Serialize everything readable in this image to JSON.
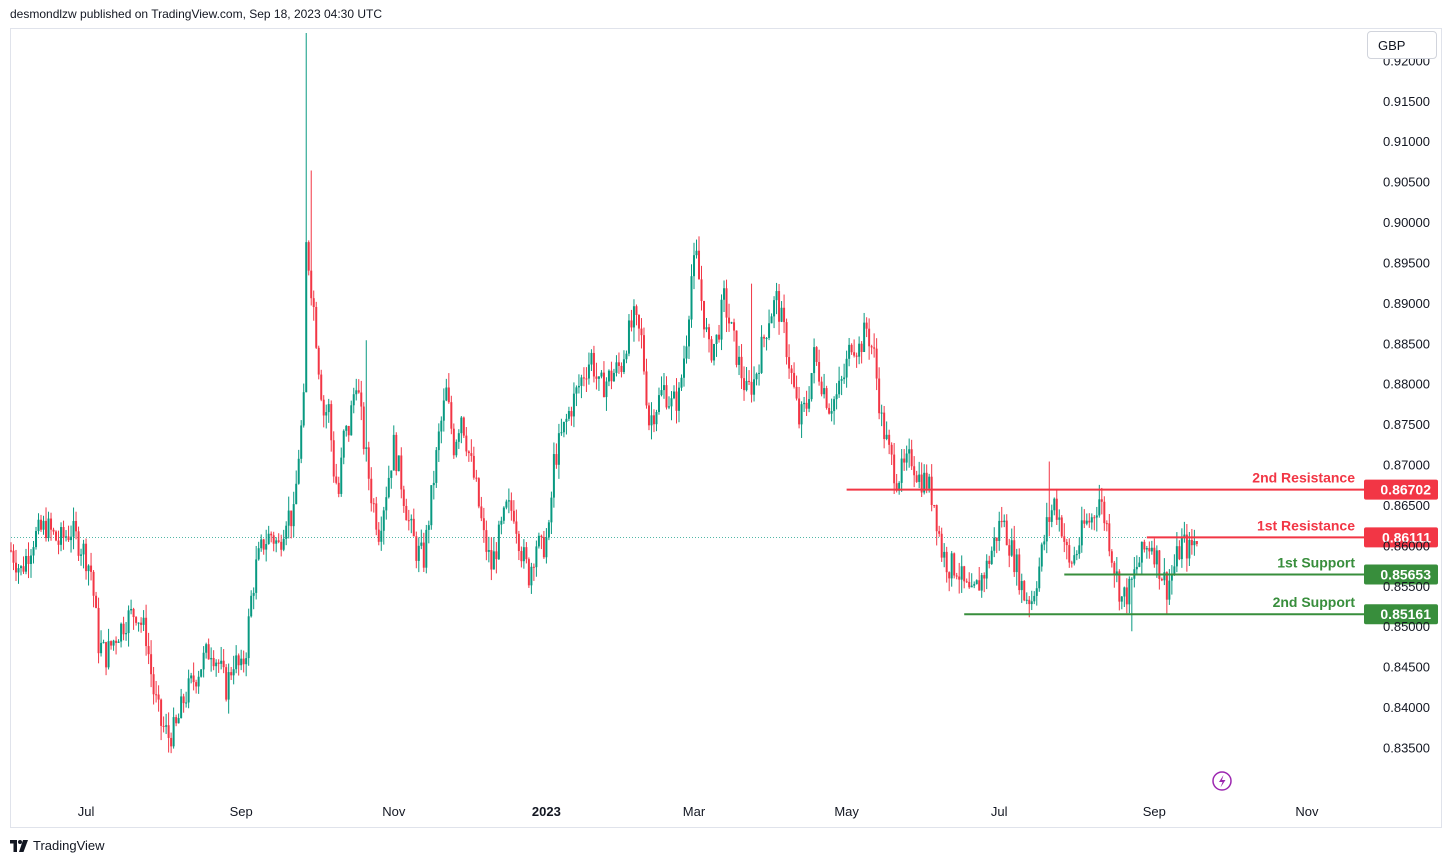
{
  "header": {
    "publisher_line": "desmondlzw published on TradingView.com, Sep 18, 2023 04:30 UTC"
  },
  "currency": "GBP",
  "footer": {
    "brand": "TradingView",
    "logo_icon": "tradingview-logo-icon"
  },
  "colors": {
    "up": "#089981",
    "down": "#f23645",
    "resistance": "#f23645",
    "support": "#388e3c"
  },
  "chart_data": {
    "type": "candlestick",
    "title": "",
    "y_range": [
      0.829,
      0.924
    ],
    "y_ticks": [
      "0.92000",
      "0.91500",
      "0.91000",
      "0.90500",
      "0.90000",
      "0.89500",
      "0.89000",
      "0.88500",
      "0.88000",
      "0.87500",
      "0.87000",
      "0.86500",
      "0.86000",
      "0.85500",
      "0.85000",
      "0.84500",
      "0.84000",
      "0.83500"
    ],
    "x_labels": [
      {
        "label": "Jul",
        "date": "2022-07-01",
        "bold": false
      },
      {
        "label": "Sep",
        "date": "2022-09-01",
        "bold": false
      },
      {
        "label": "Nov",
        "date": "2022-11-01",
        "bold": false
      },
      {
        "label": "2023",
        "date": "2023-01-01",
        "bold": true
      },
      {
        "label": "Mar",
        "date": "2023-03-01",
        "bold": false
      },
      {
        "label": "May",
        "date": "2023-05-01",
        "bold": false
      },
      {
        "label": "Jul",
        "date": "2023-07-01",
        "bold": false
      },
      {
        "label": "Sep",
        "date": "2023-09-01",
        "bold": false
      },
      {
        "label": "Nov",
        "date": "2023-11-01",
        "bold": false
      }
    ],
    "x_range": [
      "2022-06-01",
      "2023-11-23"
    ],
    "current_price": 0.8611,
    "levels": [
      {
        "name": "2nd Resistance",
        "value": 0.86702,
        "price_label": "0.86702",
        "kind": "resistance",
        "start": "2023-05-01"
      },
      {
        "name": "1st Resistance",
        "value": 0.86111,
        "price_label": "0.86111",
        "kind": "resistance",
        "start": "2023-08-29"
      },
      {
        "name": "1st Support",
        "value": 0.85653,
        "price_label": "0.85653",
        "kind": "support",
        "start": "2023-07-27"
      },
      {
        "name": "2nd Support",
        "value": 0.85161,
        "price_label": "0.85161",
        "kind": "support",
        "start": "2023-06-17"
      }
    ],
    "closes": [
      [
        "2022-06-01",
        0.8595
      ],
      [
        "2022-06-05",
        0.857
      ],
      [
        "2022-06-10",
        0.861
      ],
      [
        "2022-06-15",
        0.8625
      ],
      [
        "2022-06-20",
        0.8605
      ],
      [
        "2022-06-25",
        0.862
      ],
      [
        "2022-06-30",
        0.8595
      ],
      [
        "2022-07-03",
        0.857
      ],
      [
        "2022-07-06",
        0.848
      ],
      [
        "2022-07-09",
        0.8465
      ],
      [
        "2022-07-13",
        0.849
      ],
      [
        "2022-07-17",
        0.851
      ],
      [
        "2022-07-21",
        0.852
      ],
      [
        "2022-07-25",
        0.849
      ],
      [
        "2022-07-28",
        0.842
      ],
      [
        "2022-07-31",
        0.838
      ],
      [
        "2022-08-03",
        0.8365
      ],
      [
        "2022-08-06",
        0.8375
      ],
      [
        "2022-08-09",
        0.841
      ],
      [
        "2022-08-13",
        0.8435
      ],
      [
        "2022-08-17",
        0.846
      ],
      [
        "2022-08-20",
        0.8475
      ],
      [
        "2022-08-23",
        0.8455
      ],
      [
        "2022-08-26",
        0.8425
      ],
      [
        "2022-08-29",
        0.846
      ],
      [
        "2022-09-01",
        0.8445
      ],
      [
        "2022-09-03",
        0.8475
      ],
      [
        "2022-09-05",
        0.8535
      ],
      [
        "2022-09-07",
        0.8575
      ],
      [
        "2022-09-10",
        0.8605
      ],
      [
        "2022-09-13",
        0.8615
      ],
      [
        "2022-09-16",
        0.86
      ],
      [
        "2022-09-19",
        0.864
      ],
      [
        "2022-09-22",
        0.8635
      ],
      [
        "2022-09-24",
        0.8715
      ],
      [
        "2022-09-26",
        0.8775
      ],
      [
        "2022-09-27",
        0.897
      ],
      [
        "2022-09-28",
        0.895
      ],
      [
        "2022-09-30",
        0.8895
      ],
      [
        "2022-10-02",
        0.8825
      ],
      [
        "2022-10-04",
        0.8765
      ],
      [
        "2022-10-06",
        0.877
      ],
      [
        "2022-10-08",
        0.8695
      ],
      [
        "2022-10-10",
        0.8665
      ],
      [
        "2022-10-12",
        0.8735
      ],
      [
        "2022-10-14",
        0.8745
      ],
      [
        "2022-10-17",
        0.881
      ],
      [
        "2022-10-20",
        0.873
      ],
      [
        "2022-10-23",
        0.8665
      ],
      [
        "2022-10-26",
        0.862
      ],
      [
        "2022-10-29",
        0.867
      ],
      [
        "2022-11-01",
        0.8725
      ],
      [
        "2022-11-04",
        0.868
      ],
      [
        "2022-11-07",
        0.863
      ],
      [
        "2022-11-10",
        0.8595
      ],
      [
        "2022-11-13",
        0.8585
      ],
      [
        "2022-11-16",
        0.866
      ],
      [
        "2022-11-19",
        0.8735
      ],
      [
        "2022-11-22",
        0.879
      ],
      [
        "2022-11-25",
        0.8725
      ],
      [
        "2022-11-28",
        0.8765
      ],
      [
        "2022-12-01",
        0.8715
      ],
      [
        "2022-12-04",
        0.867
      ],
      [
        "2022-12-07",
        0.861
      ],
      [
        "2022-12-10",
        0.8575
      ],
      [
        "2022-12-13",
        0.861
      ],
      [
        "2022-12-16",
        0.8645
      ],
      [
        "2022-12-19",
        0.8645
      ],
      [
        "2022-12-22",
        0.8595
      ],
      [
        "2022-12-25",
        0.8565
      ],
      [
        "2022-12-28",
        0.8605
      ],
      [
        "2022-12-30",
        0.8595
      ],
      [
        "2023-01-02",
        0.8615
      ],
      [
        "2023-01-04",
        0.8705
      ],
      [
        "2023-01-07",
        0.8735
      ],
      [
        "2023-01-10",
        0.8765
      ],
      [
        "2023-01-13",
        0.879
      ],
      [
        "2023-01-16",
        0.8815
      ],
      [
        "2023-01-19",
        0.8835
      ],
      [
        "2023-01-22",
        0.8795
      ],
      [
        "2023-01-25",
        0.8805
      ],
      [
        "2023-01-28",
        0.8815
      ],
      [
        "2023-01-31",
        0.8825
      ],
      [
        "2023-02-02",
        0.8855
      ],
      [
        "2023-02-05",
        0.888
      ],
      [
        "2023-02-08",
        0.8855
      ],
      [
        "2023-02-11",
        0.8755
      ],
      [
        "2023-02-14",
        0.8775
      ],
      [
        "2023-02-17",
        0.8795
      ],
      [
        "2023-02-20",
        0.8775
      ],
      [
        "2023-02-23",
        0.8785
      ],
      [
        "2023-02-26",
        0.886
      ],
      [
        "2023-02-28",
        0.8935
      ],
      [
        "2023-03-02",
        0.8955
      ],
      [
        "2023-03-04",
        0.8905
      ],
      [
        "2023-03-07",
        0.884
      ],
      [
        "2023-03-10",
        0.8855
      ],
      [
        "2023-03-13",
        0.8905
      ],
      [
        "2023-03-16",
        0.8865
      ],
      [
        "2023-03-19",
        0.8825
      ],
      [
        "2023-03-22",
        0.879
      ],
      [
        "2023-03-25",
        0.8805
      ],
      [
        "2023-03-28",
        0.8845
      ],
      [
        "2023-03-31",
        0.8885
      ],
      [
        "2023-04-03",
        0.8905
      ],
      [
        "2023-04-06",
        0.8865
      ],
      [
        "2023-04-09",
        0.881
      ],
      [
        "2023-04-12",
        0.8755
      ],
      [
        "2023-04-15",
        0.8775
      ],
      [
        "2023-04-18",
        0.8835
      ],
      [
        "2023-04-21",
        0.8805
      ],
      [
        "2023-04-24",
        0.8775
      ],
      [
        "2023-04-27",
        0.8785
      ],
      [
        "2023-04-30",
        0.881
      ],
      [
        "2023-05-03",
        0.8855
      ],
      [
        "2023-05-06",
        0.8845
      ],
      [
        "2023-05-09",
        0.887
      ],
      [
        "2023-05-12",
        0.8835
      ],
      [
        "2023-05-15",
        0.8755
      ],
      [
        "2023-05-18",
        0.8715
      ],
      [
        "2023-05-21",
        0.8685
      ],
      [
        "2023-05-24",
        0.8695
      ],
      [
        "2023-05-27",
        0.871
      ],
      [
        "2023-05-30",
        0.8685
      ],
      [
        "2023-06-02",
        0.868
      ],
      [
        "2023-06-05",
        0.8655
      ],
      [
        "2023-06-08",
        0.8595
      ],
      [
        "2023-06-11",
        0.8575
      ],
      [
        "2023-06-14",
        0.8575
      ],
      [
        "2023-06-17",
        0.855
      ],
      [
        "2023-06-20",
        0.8535
      ],
      [
        "2023-06-23",
        0.8555
      ],
      [
        "2023-06-26",
        0.8575
      ],
      [
        "2023-06-29",
        0.8605
      ],
      [
        "2023-07-02",
        0.8635
      ],
      [
        "2023-07-05",
        0.8605
      ],
      [
        "2023-07-08",
        0.8575
      ],
      [
        "2023-07-11",
        0.854
      ],
      [
        "2023-07-14",
        0.8535
      ],
      [
        "2023-07-17",
        0.8575
      ],
      [
        "2023-07-20",
        0.8625
      ],
      [
        "2023-07-23",
        0.8655
      ],
      [
        "2023-07-26",
        0.8625
      ],
      [
        "2023-07-29",
        0.8575
      ],
      [
        "2023-08-01",
        0.8595
      ],
      [
        "2023-08-04",
        0.8625
      ],
      [
        "2023-08-07",
        0.8635
      ],
      [
        "2023-08-10",
        0.866
      ],
      [
        "2023-08-13",
        0.8625
      ],
      [
        "2023-08-16",
        0.8575
      ],
      [
        "2023-08-19",
        0.8535
      ],
      [
        "2023-08-22",
        0.8545
      ],
      [
        "2023-08-25",
        0.8575
      ],
      [
        "2023-08-28",
        0.8595
      ],
      [
        "2023-08-31",
        0.8605
      ],
      [
        "2023-09-03",
        0.8575
      ],
      [
        "2023-09-06",
        0.855
      ],
      [
        "2023-09-09",
        0.8575
      ],
      [
        "2023-09-12",
        0.8605
      ],
      [
        "2023-09-15",
        0.8595
      ],
      [
        "2023-09-18",
        0.8611
      ]
    ],
    "spikes": [
      [
        "2022-09-27",
        0.9235
      ],
      [
        "2022-09-29",
        0.9065
      ],
      [
        "2022-10-21",
        0.8855
      ],
      [
        "2023-03-01",
        0.8975
      ],
      [
        "2023-03-24",
        0.8925
      ],
      [
        "2023-07-21",
        0.8705
      ],
      [
        "2023-08-23",
        0.8495
      ],
      [
        "2022-08-03",
        0.8345
      ]
    ]
  }
}
